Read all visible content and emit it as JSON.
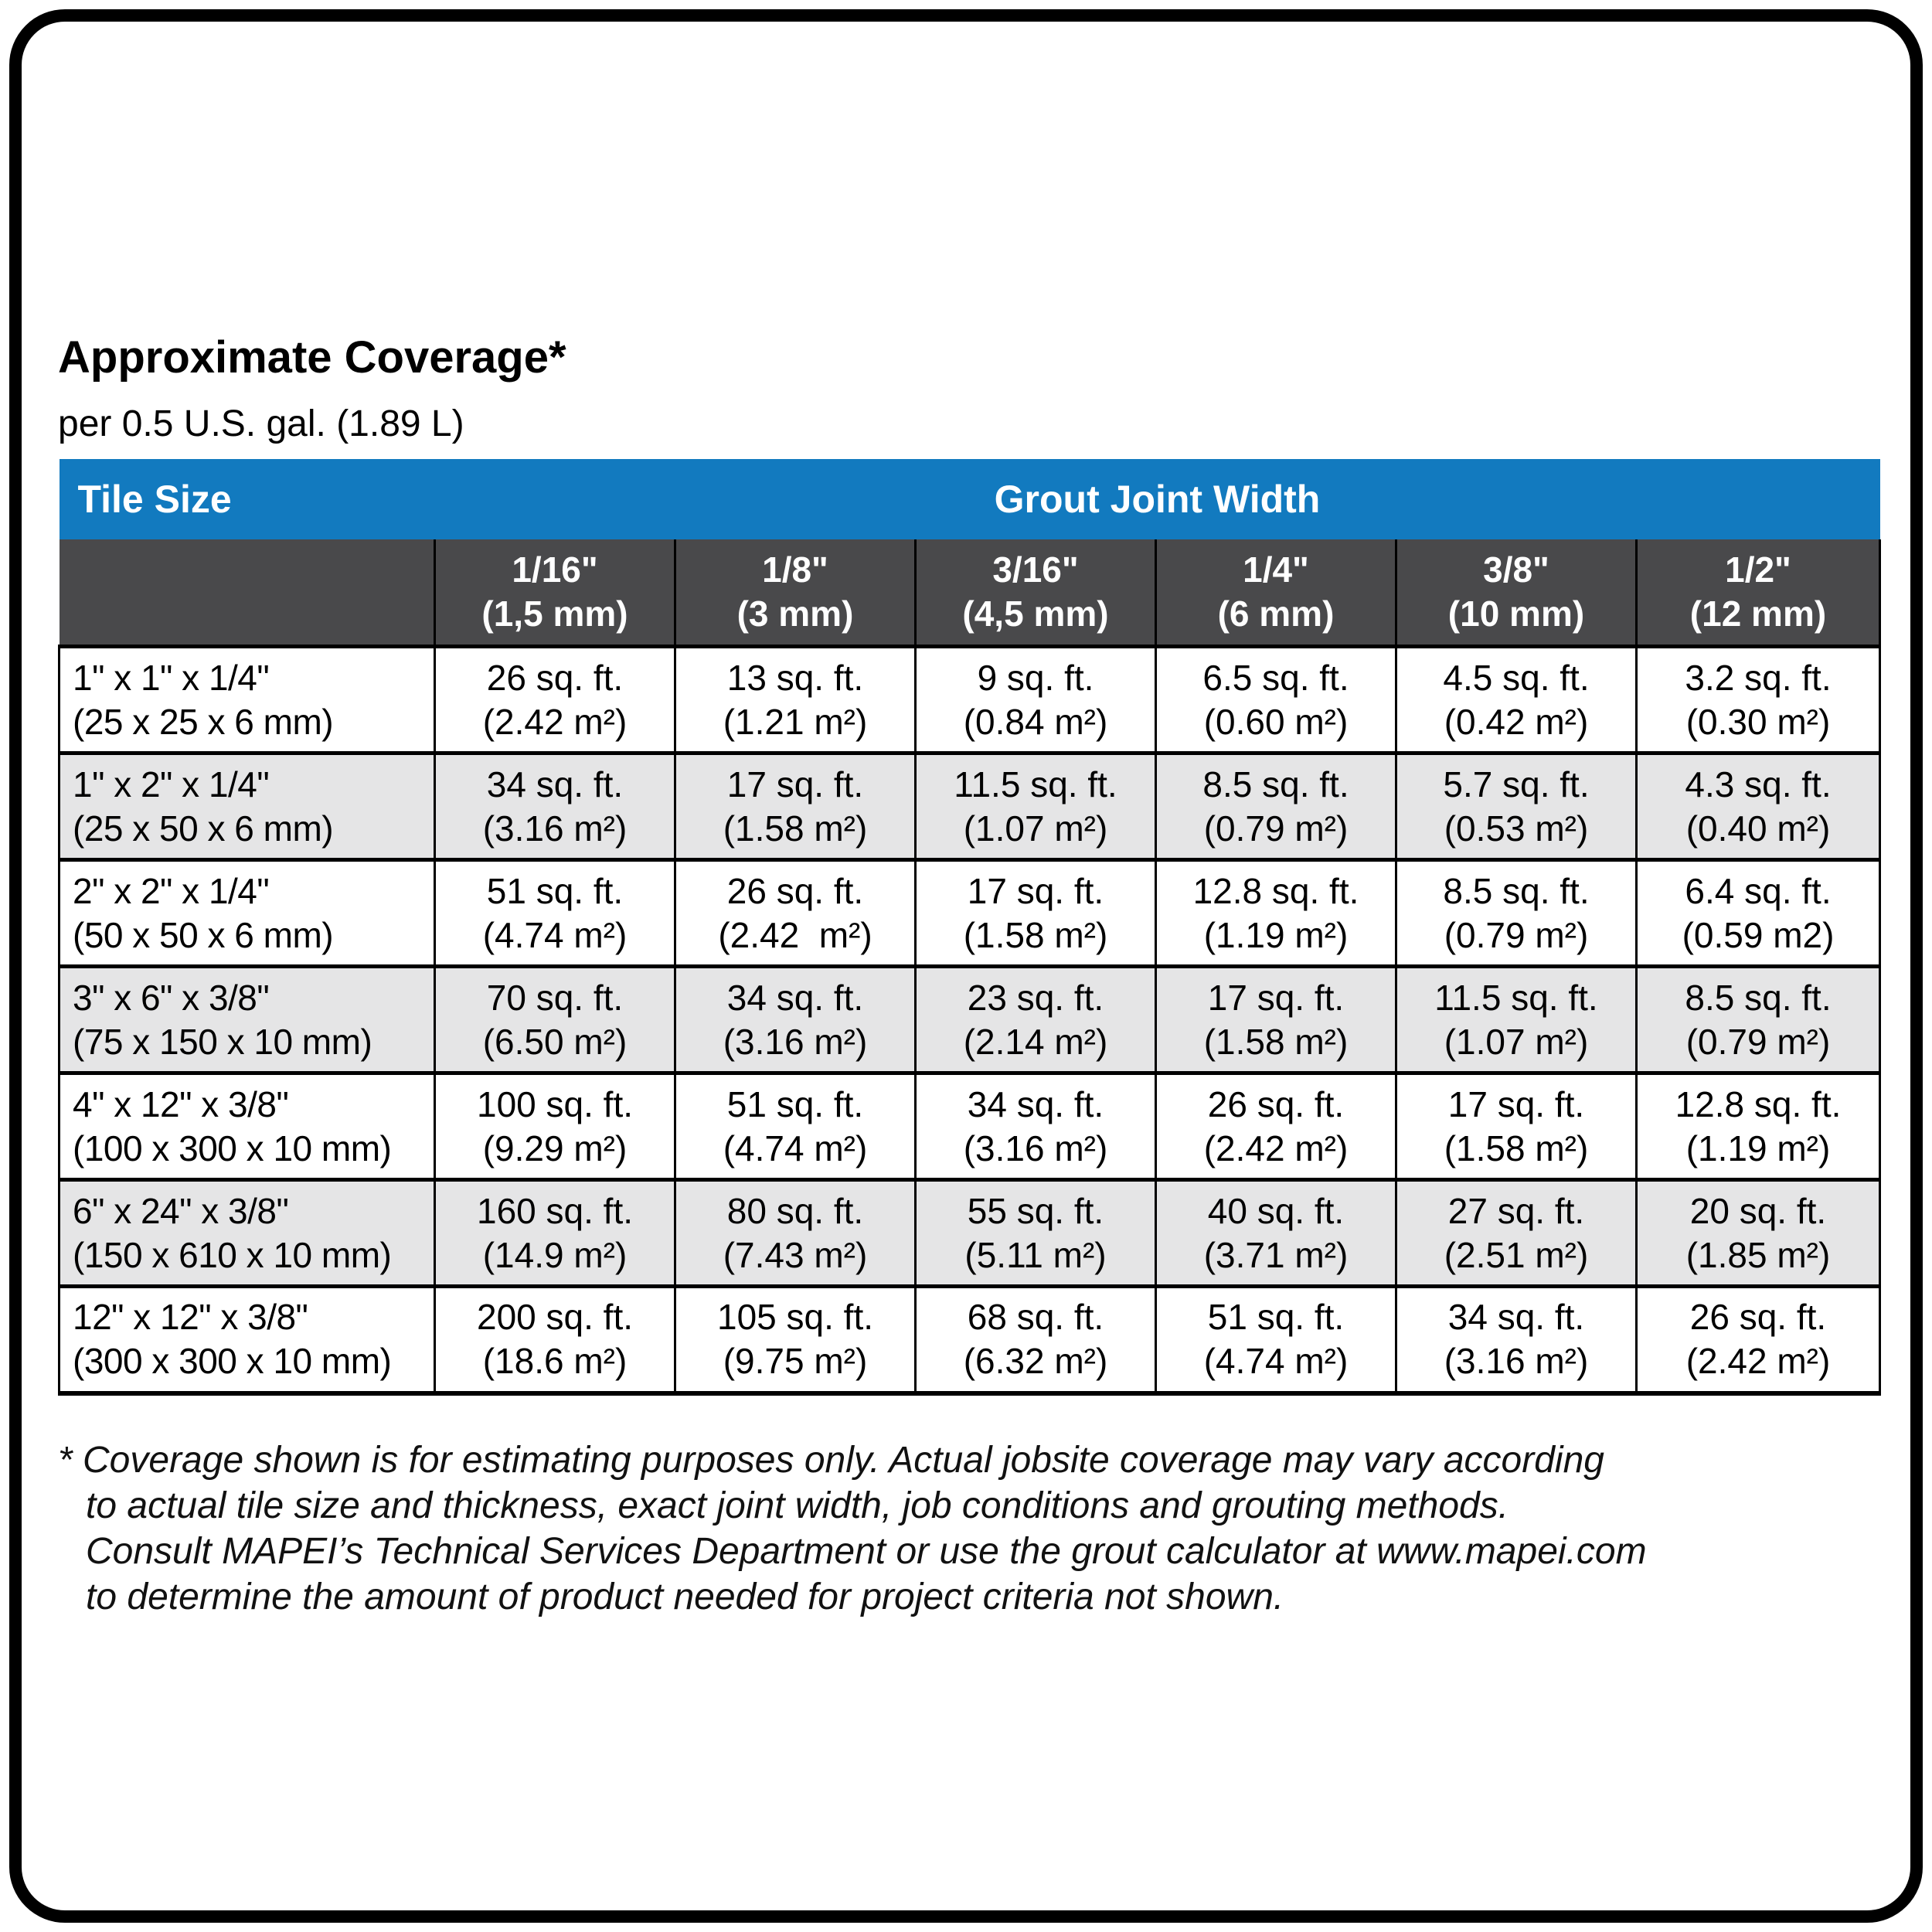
{
  "header": {
    "title": "Approximate Coverage*",
    "subtitle": "per 0.5 U.S. gal. (1.89 L)"
  },
  "table": {
    "tile_size_label": "Tile Size",
    "grout_joint_width_label": "Grout Joint Width",
    "joint_widths": [
      {
        "inches": "1/16\"",
        "mm": "(1,5 mm)"
      },
      {
        "inches": "1/8\"",
        "mm": "(3 mm)"
      },
      {
        "inches": "3/16\"",
        "mm": "(4,5 mm)"
      },
      {
        "inches": "1/4\"",
        "mm": "(6 mm)"
      },
      {
        "inches": "3/8\"",
        "mm": "(10 mm)"
      },
      {
        "inches": "1/2\"",
        "mm": "(12 mm)"
      }
    ],
    "rows": [
      {
        "tile_size": "1\" x 1\" x 1/4\"",
        "tile_size_mm": "(25 x 25 x 6 mm)",
        "cells": [
          {
            "sqft": "26 sq. ft.",
            "m2": "(2.42 m²)"
          },
          {
            "sqft": "13 sq. ft.",
            "m2": "(1.21 m²)"
          },
          {
            "sqft": "9 sq. ft.",
            "m2": "(0.84 m²)"
          },
          {
            "sqft": "6.5 sq. ft.",
            "m2": "(0.60 m²)"
          },
          {
            "sqft": "4.5 sq. ft.",
            "m2": "(0.42 m²)"
          },
          {
            "sqft": "3.2 sq. ft.",
            "m2": "(0.30 m²)"
          }
        ]
      },
      {
        "tile_size": "1\" x 2\" x 1/4\"",
        "tile_size_mm": "(25 x 50 x 6 mm)",
        "cells": [
          {
            "sqft": "34 sq. ft.",
            "m2": "(3.16 m²)"
          },
          {
            "sqft": "17 sq. ft.",
            "m2": "(1.58 m²)"
          },
          {
            "sqft": "11.5 sq. ft.",
            "m2": "(1.07 m²)"
          },
          {
            "sqft": "8.5 sq. ft.",
            "m2": "(0.79 m²)"
          },
          {
            "sqft": "5.7 sq. ft.",
            "m2": "(0.53 m²)"
          },
          {
            "sqft": "4.3 sq. ft.",
            "m2": "(0.40 m²)"
          }
        ]
      },
      {
        "tile_size": "2\" x 2\" x 1/4\"",
        "tile_size_mm": "(50 x 50 x 6 mm)",
        "cells": [
          {
            "sqft": "51 sq. ft.",
            "m2": "(4.74 m²)"
          },
          {
            "sqft": "26 sq. ft.",
            "m2": "(2.42  m²)"
          },
          {
            "sqft": "17 sq. ft.",
            "m2": "(1.58 m²)"
          },
          {
            "sqft": "12.8 sq. ft.",
            "m2": "(1.19 m²)"
          },
          {
            "sqft": "8.5 sq. ft.",
            "m2": "(0.79 m²)"
          },
          {
            "sqft": "6.4 sq. ft.",
            "m2": "(0.59 m2)"
          }
        ]
      },
      {
        "tile_size": "3\" x 6\" x 3/8\"",
        "tile_size_mm": "(75 x 150 x 10 mm)",
        "cells": [
          {
            "sqft": "70 sq. ft.",
            "m2": "(6.50 m²)"
          },
          {
            "sqft": "34 sq. ft.",
            "m2": "(3.16 m²)"
          },
          {
            "sqft": "23 sq. ft.",
            "m2": "(2.14 m²)"
          },
          {
            "sqft": "17 sq. ft.",
            "m2": "(1.58 m²)"
          },
          {
            "sqft": "11.5 sq. ft.",
            "m2": "(1.07 m²)"
          },
          {
            "sqft": "8.5 sq. ft.",
            "m2": "(0.79 m²)"
          }
        ]
      },
      {
        "tile_size": "4\" x 12\" x 3/8\"",
        "tile_size_mm": "(100 x 300 x 10 mm)",
        "cells": [
          {
            "sqft": "100 sq. ft.",
            "m2": "(9.29 m²)"
          },
          {
            "sqft": "51 sq. ft.",
            "m2": "(4.74 m²)"
          },
          {
            "sqft": "34 sq. ft.",
            "m2": "(3.16 m²)"
          },
          {
            "sqft": "26 sq. ft.",
            "m2": "(2.42 m²)"
          },
          {
            "sqft": "17 sq. ft.",
            "m2": "(1.58 m²)"
          },
          {
            "sqft": "12.8 sq. ft.",
            "m2": "(1.19 m²)"
          }
        ]
      },
      {
        "tile_size": "6\" x 24\" x 3/8\"",
        "tile_size_mm": "(150 x 610 x 10 mm)",
        "cells": [
          {
            "sqft": "160 sq. ft.",
            "m2": "(14.9 m²)"
          },
          {
            "sqft": "80 sq. ft.",
            "m2": "(7.43 m²)"
          },
          {
            "sqft": "55 sq. ft.",
            "m2": "(5.11 m²)"
          },
          {
            "sqft": "40 sq. ft.",
            "m2": "(3.71 m²)"
          },
          {
            "sqft": "27 sq. ft.",
            "m2": "(2.51 m²)"
          },
          {
            "sqft": "20 sq. ft.",
            "m2": "(1.85 m²)"
          }
        ]
      },
      {
        "tile_size": "12\" x 12\" x 3/8\"",
        "tile_size_mm": "(300 x 300 x 10 mm)",
        "cells": [
          {
            "sqft": "200 sq. ft.",
            "m2": "(18.6 m²)"
          },
          {
            "sqft": "105 sq. ft.",
            "m2": "(9.75 m²)"
          },
          {
            "sqft": "68 sq. ft.",
            "m2": "(6.32 m²)"
          },
          {
            "sqft": "51 sq. ft.",
            "m2": "(4.74 m²)"
          },
          {
            "sqft": "34 sq. ft.",
            "m2": "(3.16 m²)"
          },
          {
            "sqft": "26 sq. ft.",
            "m2": "(2.42 m²)"
          }
        ]
      }
    ]
  },
  "footnote": {
    "lines": [
      "* Coverage shown is for estimating purposes only. Actual jobsite coverage may vary according",
      "to actual tile size and thickness, exact joint width, job conditions and grouting methods.",
      "Consult MAPEI’s Technical Services Department or use the grout calculator at www.mapei.com",
      "to determine the amount of product needed for project criteria not shown."
    ]
  },
  "colors": {
    "header_blue": "#127ABF",
    "header_gray": "#49494B",
    "row_alt": "#E5E5E6",
    "border_black": "#000000"
  }
}
